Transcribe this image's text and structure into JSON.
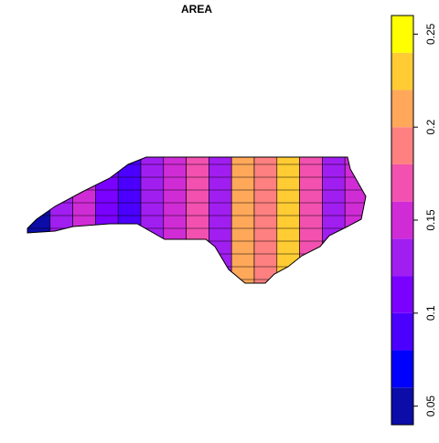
{
  "chart_data": {
    "type": "choropleth",
    "title": "AREA",
    "regions": [
      0.05,
      0.13,
      0.15,
      0.11,
      0.09,
      0.13,
      0.14,
      0.17,
      0.13,
      0.21,
      0.19,
      0.23,
      0.17,
      0.12,
      0.15
    ],
    "breaks": [
      0.04,
      0.06,
      0.08,
      0.1,
      0.12,
      0.14,
      0.16,
      0.18,
      0.2,
      0.22,
      0.24,
      0.26
    ],
    "colors": [
      "#0C0CA8",
      "#0000FF",
      "#4B00FF",
      "#7A00FF",
      "#A11EF0",
      "#D02CD6",
      "#F251B0",
      "#FF8080",
      "#FFA85A",
      "#FFCC33",
      "#FFFF00"
    ],
    "ylim": [
      0.04,
      0.26
    ],
    "yticks": [
      0.05,
      0.1,
      0.15,
      0.2,
      0.25
    ]
  }
}
